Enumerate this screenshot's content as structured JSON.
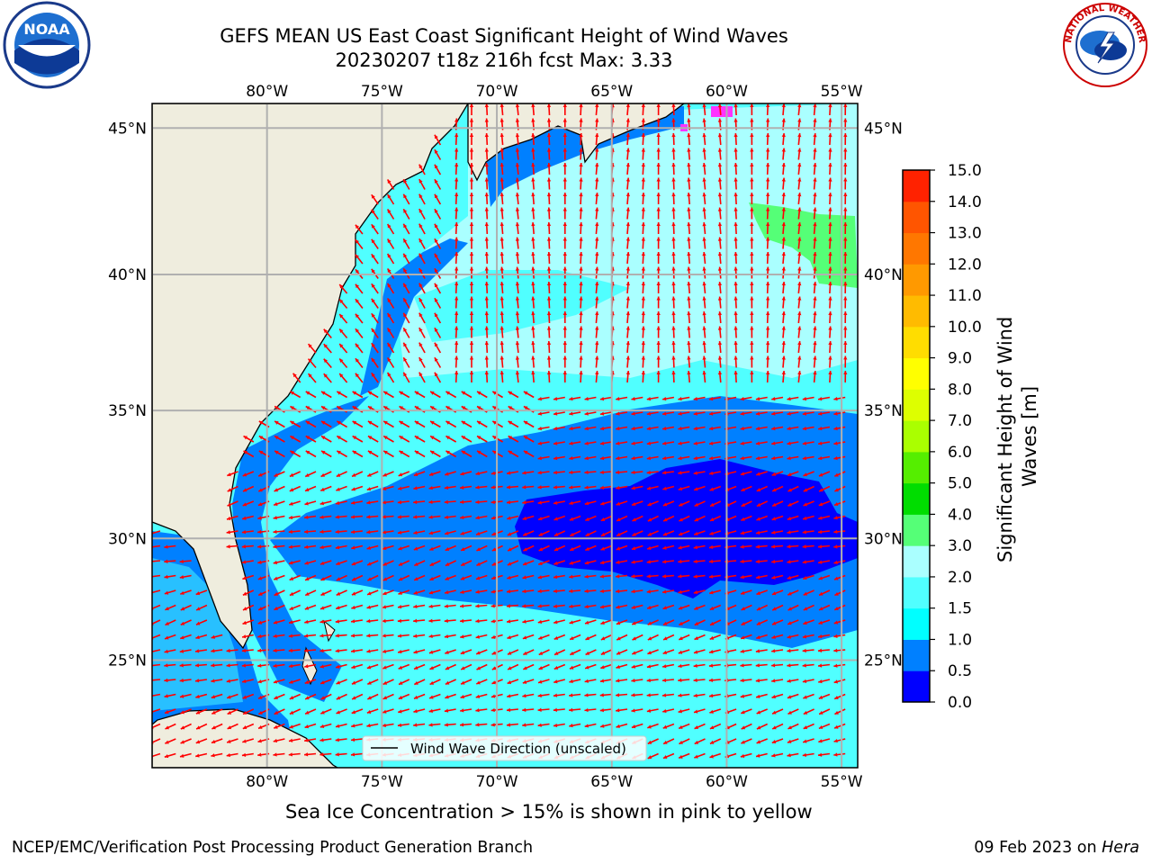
{
  "title": {
    "line1": "GEFS MEAN US East Coast Significant Height of Wind Waves",
    "line2": "20230207 t18z 216h fcst   Max: 3.33"
  },
  "logos": {
    "left": {
      "text": "NOAA",
      "icon": "noaa-logo"
    },
    "right": {
      "text": "NATIONAL WEATHER SERVICE",
      "icon": "nws-logo"
    }
  },
  "map": {
    "lon_ticks": [
      "80°W",
      "75°W",
      "70°W",
      "65°W",
      "60°W",
      "55°W"
    ],
    "lat_ticks": [
      "45°N",
      "40°N",
      "35°N",
      "30°N",
      "25°N"
    ],
    "lon_values": [
      -80,
      -75,
      -70,
      -65,
      -60,
      -55
    ],
    "lat_values": [
      45,
      40,
      35,
      30,
      25
    ],
    "extent": {
      "lon_min": -85,
      "lon_max": -54.3,
      "lat_min": 20.4,
      "lat_max": 45.8
    },
    "legend_label": "Wind Wave Direction (unscaled)",
    "colors": {
      "land": "#efedde",
      "arrow": "#ff0000",
      "grid": "#b0b0b0",
      "ice": "#ff33ff"
    }
  },
  "colorbar": {
    "label": "Significant Height of Wind Waves [m]",
    "label_line1": "Significant Height of Wind",
    "label_line2": "Waves [m]",
    "ticks": [
      "0.0",
      "0.5",
      "1.0",
      "1.5",
      "2.0",
      "3.0",
      "4.0",
      "5.0",
      "6.0",
      "7.0",
      "8.0",
      "9.0",
      "10.0",
      "11.0",
      "12.0",
      "13.0",
      "14.0",
      "15.0"
    ],
    "colors": [
      "#0000ff",
      "#0080ff",
      "#00ffff",
      "#50ffff",
      "#aaffff",
      "#55ff77",
      "#00dd00",
      "#55ee00",
      "#aaff00",
      "#ddff00",
      "#ffff00",
      "#ffdd00",
      "#ffbb00",
      "#ff9900",
      "#ff7700",
      "#ff5500",
      "#ff2200"
    ]
  },
  "subtitle": "Sea Ice Concentration > 15% is shown in pink to yellow",
  "footer": {
    "left": "NCEP/EMC/Verification Post Processing Product Generation Branch",
    "right_date": "09 Feb 2023 on ",
    "right_host": "Hera"
  }
}
